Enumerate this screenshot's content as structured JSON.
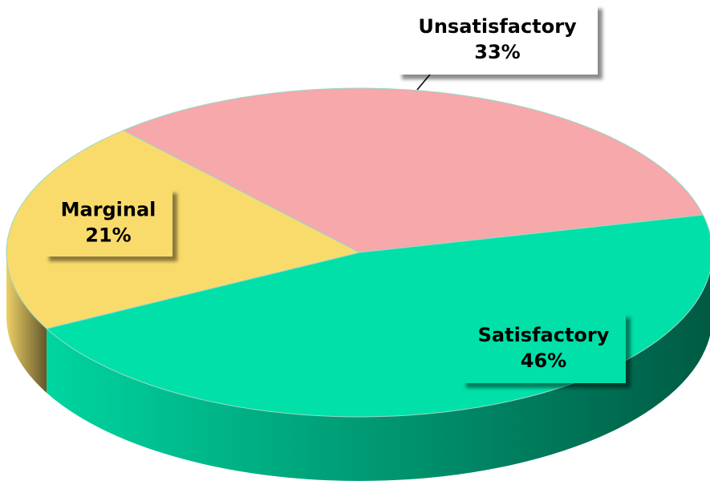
{
  "chart_data": {
    "type": "pie",
    "categories": [
      "Unsatisfactory",
      "Satisfactory",
      "Marginal"
    ],
    "values": [
      33,
      46,
      21
    ],
    "value_labels": [
      "33%",
      "46%",
      "21%"
    ],
    "colors": [
      "#f6a8aa",
      "#00e0a8",
      "#f9db6c"
    ]
  }
}
